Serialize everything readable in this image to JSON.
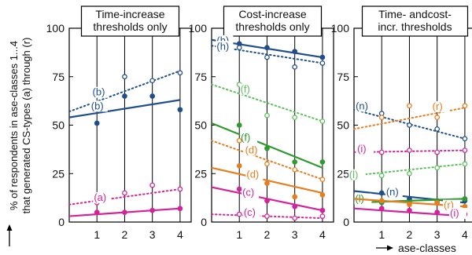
{
  "y_axis_label_line1": "% of respondents in ase-classes 1...4",
  "y_axis_label_line2": "that generated CS-types (a) through (r)",
  "x_axis_label": "ase-classes",
  "colors": {
    "blue": "#1f4e8c",
    "green": "#2e9b2e",
    "orange": "#e87d1e",
    "magenta": "#d4239a",
    "light_green": "#5cc15c",
    "arrow": "#000000"
  },
  "chart_data": [
    {
      "type": "scatter",
      "title_lines": [
        "Time-increase",
        "thresholds only"
      ],
      "categories": [
        "1",
        "2",
        "3",
        "4"
      ],
      "ylim": [
        0,
        100
      ],
      "yticks": [
        "0",
        "25",
        "50",
        "75",
        "100"
      ],
      "series": [
        {
          "name": "(b)",
          "color": "blue",
          "points": [
            [
              1,
              58
            ],
            [
              2,
              75
            ],
            [
              3,
              73
            ],
            [
              4,
              77
            ]
          ],
          "fit": [
            [
              0,
              57
            ],
            [
              4,
              78
            ]
          ],
          "style": "dotted",
          "open": true
        },
        {
          "name": "(b)",
          "color": "blue",
          "points": [
            [
              1,
              51
            ],
            [
              2,
              65
            ],
            [
              3,
              65
            ],
            [
              4,
              58
            ]
          ],
          "fit": [
            [
              0,
              54
            ],
            [
              4,
              63
            ]
          ],
          "style": "solid",
          "open": false
        },
        {
          "name": "(a)",
          "color": "magenta",
          "points": [
            [
              1,
              10
            ],
            [
              2,
              15
            ],
            [
              3,
              19
            ],
            [
              4,
              17
            ]
          ],
          "fit": [
            [
              0,
              9
            ],
            [
              4,
              17
            ]
          ],
          "style": "dotted",
          "open": true
        },
        {
          "name": "",
          "color": "magenta",
          "points": [
            [
              1,
              5
            ],
            [
              2,
              5
            ],
            [
              3,
              6
            ],
            [
              4,
              7
            ]
          ],
          "fit": [
            [
              0,
              3
            ],
            [
              4,
              7
            ]
          ],
          "style": "solid",
          "open": false
        }
      ]
    },
    {
      "type": "scatter",
      "title_lines": [
        "Cost-increase",
        "thresholds only"
      ],
      "categories": [
        "1",
        "2",
        "3",
        "4"
      ],
      "ylim": [
        0,
        100
      ],
      "yticks": [
        "0",
        "25",
        "50",
        "75",
        "100"
      ],
      "series": [
        {
          "name": "(h)",
          "color": "blue",
          "points": [
            [
              1,
              92
            ],
            [
              2,
              90
            ],
            [
              3,
              88
            ],
            [
              4,
              85
            ]
          ],
          "fit": [
            [
              0,
              94
            ],
            [
              4,
              85
            ]
          ],
          "style": "solid",
          "open": false
        },
        {
          "name": "(h)",
          "color": "blue",
          "points": [
            [
              1,
              90
            ],
            [
              2,
              85
            ],
            [
              3,
              80
            ],
            [
              4,
              82
            ]
          ],
          "fit": [
            [
              0,
              91
            ],
            [
              4,
              82
            ]
          ],
          "style": "dotted",
          "open": true
        },
        {
          "name": "(f)",
          "color": "light_green",
          "points": [
            [
              1,
              71
            ],
            [
              2,
              55
            ],
            [
              3,
              54
            ],
            [
              4,
              52
            ]
          ],
          "fit": [
            [
              0,
              71
            ],
            [
              4,
              52
            ]
          ],
          "style": "dotted",
          "open": true
        },
        {
          "name": "(f)",
          "color": "green",
          "points": [
            [
              1,
              50
            ],
            [
              2,
              38
            ],
            [
              3,
              31
            ],
            [
              4,
              31
            ]
          ],
          "fit": [
            [
              0,
              51
            ],
            [
              4,
              28
            ]
          ],
          "style": "solid",
          "open": false
        },
        {
          "name": "(d)",
          "color": "orange",
          "points": [
            [
              1,
              42
            ],
            [
              2,
              30
            ],
            [
              3,
              27
            ],
            [
              4,
              22
            ]
          ],
          "fit": [
            [
              0,
              42
            ],
            [
              4,
              22
            ]
          ],
          "style": "dotted",
          "open": true
        },
        {
          "name": "(d)",
          "color": "orange",
          "points": [
            [
              1,
              29
            ],
            [
              2,
              20
            ],
            [
              3,
              13
            ],
            [
              4,
              14
            ]
          ],
          "fit": [
            [
              0,
              28
            ],
            [
              4,
              15
            ]
          ],
          "style": "solid",
          "open": false
        },
        {
          "name": "(c)",
          "color": "magenta",
          "points": [
            [
              1,
              17
            ],
            [
              2,
              11
            ],
            [
              3,
              8
            ],
            [
              4,
              6
            ]
          ],
          "fit": [
            [
              0,
              18
            ],
            [
              4,
              6
            ]
          ],
          "style": "solid",
          "open": false
        },
        {
          "name": "(c)",
          "color": "magenta",
          "points": [
            [
              1,
              4
            ],
            [
              2,
              3
            ],
            [
              3,
              2
            ],
            [
              4,
              3
            ]
          ],
          "fit": [
            [
              0,
              4
            ],
            [
              4,
              2
            ]
          ],
          "style": "dotted",
          "open": true
        }
      ]
    },
    {
      "type": "scatter",
      "title_lines": [
        "Time- andcost-",
        "incr. thresholds"
      ],
      "categories": [
        "1",
        "2",
        "3",
        "4"
      ],
      "ylim": [
        0,
        100
      ],
      "yticks": [
        "0",
        "25",
        "50",
        "75",
        "100"
      ],
      "series": [
        {
          "name": "(n)",
          "color": "blue",
          "points": [
            [
              1,
              56
            ],
            [
              2,
              50
            ],
            [
              3,
              48
            ],
            [
              4,
              43
            ]
          ],
          "fit": [
            [
              0,
              58
            ],
            [
              4,
              43
            ]
          ],
          "style": "dotted",
          "open": true
        },
        {
          "name": "(r)",
          "color": "orange",
          "points": [
            [
              1,
              54
            ],
            [
              2,
              60
            ],
            [
              3,
              54
            ],
            [
              4,
              60
            ]
          ],
          "fit": [
            [
              0,
              48
            ],
            [
              4,
              59
            ]
          ],
          "style": "dotted",
          "open": true
        },
        {
          "name": "(i)",
          "color": "magenta",
          "points": [
            [
              1,
              36
            ],
            [
              2,
              37
            ],
            [
              3,
              36
            ],
            [
              4,
              37
            ]
          ],
          "fit": [
            [
              0,
              36
            ],
            [
              4,
              37
            ]
          ],
          "style": "dotted",
          "open": true
        },
        {
          "name": "(l)",
          "color": "light_green",
          "points": [
            [
              1,
              24
            ],
            [
              2,
              25
            ],
            [
              3,
              28
            ],
            [
              4,
              30
            ]
          ],
          "fit": [
            [
              0,
              24
            ],
            [
              4,
              30
            ]
          ],
          "style": "dotted",
          "open": true
        },
        {
          "name": "(n)",
          "color": "blue",
          "points": [
            [
              1,
              15
            ],
            [
              2,
              12
            ],
            [
              3,
              10
            ],
            [
              4,
              11
            ]
          ],
          "fit": [
            [
              0,
              16
            ],
            [
              4,
              10
            ]
          ],
          "style": "solid",
          "open": false
        },
        {
          "name": "(l)",
          "color": "green",
          "points": [
            [
              1,
              10
            ],
            [
              2,
              10
            ],
            [
              3,
              11
            ],
            [
              4,
              12
            ]
          ],
          "fit": [
            [
              0,
              10
            ],
            [
              4,
              12
            ]
          ],
          "style": "solid",
          "open": false
        },
        {
          "name": "(r)",
          "color": "orange",
          "points": [
            [
              1,
              11
            ],
            [
              2,
              9
            ],
            [
              3,
              10
            ],
            [
              4,
              8
            ]
          ],
          "fit": [
            [
              0,
              12
            ],
            [
              4,
              8
            ]
          ],
          "style": "solid",
          "open": false
        },
        {
          "name": "(i)",
          "color": "magenta",
          "points": [
            [
              1,
              7
            ],
            [
              2,
              6
            ],
            [
              3,
              5
            ],
            [
              4,
              4
            ]
          ],
          "fit": [
            [
              0,
              7
            ],
            [
              4,
              3
            ]
          ],
          "style": "solid",
          "open": false
        }
      ]
    }
  ]
}
